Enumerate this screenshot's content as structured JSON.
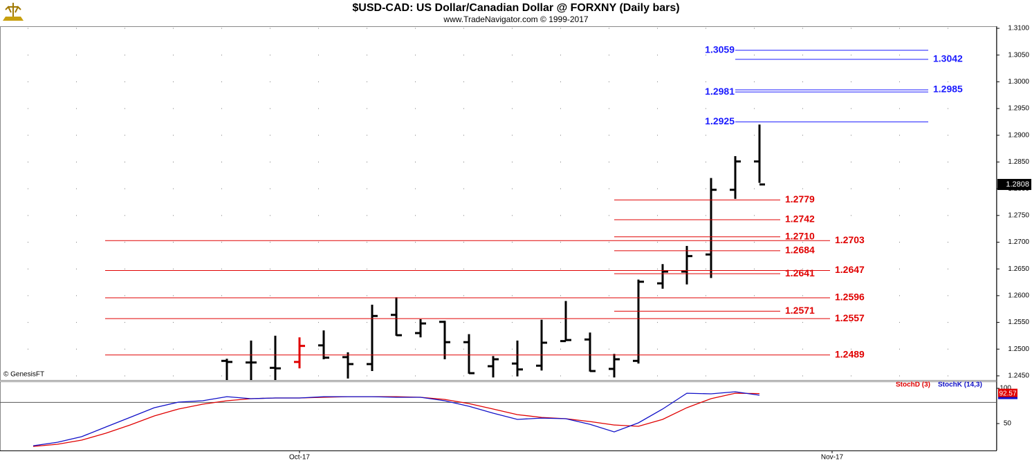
{
  "chart_data": {
    "type": "ohlc",
    "title": "$USD-CAD:  US Dollar/Canadian Dollar @ FORXNY  (Daily bars)",
    "subtitle": "www.TradeNavigator.com © 1999-2017",
    "watermark": "© GenesisFT",
    "xlim": [
      -1.371,
      39.771
    ],
    "xticks": [
      {
        "value": 11,
        "label": "Oct-17"
      },
      {
        "value": 33,
        "label": "Nov-17"
      }
    ],
    "ylim": [
      1.24422,
      1.31039
    ],
    "yticks": [
      {
        "value": 1.245,
        "label": "1.2450"
      },
      {
        "value": 1.25,
        "label": "1.2500"
      },
      {
        "value": 1.255,
        "label": "1.2550"
      },
      {
        "value": 1.26,
        "label": "1.2600"
      },
      {
        "value": 1.265,
        "label": "1.2650"
      },
      {
        "value": 1.27,
        "label": "1.2700"
      },
      {
        "value": 1.275,
        "label": "1.2750"
      },
      {
        "value": 1.28,
        "label": "1.2800"
      },
      {
        "value": 1.285,
        "label": "1.2850"
      },
      {
        "value": 1.29,
        "label": "1.2900"
      },
      {
        "value": 1.295,
        "label": "1.2950"
      },
      {
        "value": 1.3,
        "label": "1.3000"
      },
      {
        "value": 1.305,
        "label": "1.3050"
      },
      {
        "value": 1.31,
        "label": "1.3100"
      }
    ],
    "grid": true,
    "bars": {
      "x": [
        8,
        9,
        10,
        11,
        12,
        13,
        14,
        15,
        16,
        17,
        18,
        19,
        20,
        21,
        22,
        23,
        24,
        25,
        26,
        27,
        28,
        29,
        30
      ],
      "open": [
        1.2478,
        1.2475,
        1.2465,
        1.2476,
        1.2507,
        1.2485,
        1.2472,
        1.2564,
        1.253,
        1.2551,
        1.2513,
        1.2468,
        1.2473,
        1.2469,
        1.2515,
        1.2518,
        1.2463,
        1.2478,
        1.2623,
        1.2645,
        1.2677,
        1.2798,
        1.2851
      ],
      "high": [
        1.2482,
        1.2516,
        1.2525,
        1.2522,
        1.2535,
        1.2494,
        1.2583,
        1.2597,
        1.2556,
        1.2553,
        1.2528,
        1.2487,
        1.2516,
        1.2555,
        1.259,
        1.2531,
        1.2491,
        1.263,
        1.2659,
        1.2693,
        1.282,
        1.2861,
        1.292
      ],
      "low": [
        1.244,
        1.244,
        1.244,
        1.2464,
        1.2481,
        1.2445,
        1.2459,
        1.2525,
        1.2522,
        1.2481,
        1.2454,
        1.2447,
        1.2449,
        1.246,
        1.2515,
        1.2458,
        1.2447,
        1.2473,
        1.2613,
        1.2621,
        1.2633,
        1.2781,
        1.2811
      ],
      "close": [
        1.2476,
        1.2475,
        1.2464,
        1.2506,
        1.2484,
        1.2472,
        1.2562,
        1.2526,
        1.2548,
        1.2513,
        1.2455,
        1.2481,
        1.2462,
        1.2512,
        1.2517,
        1.2459,
        1.2481,
        1.2626,
        1.2645,
        1.2674,
        1.2798,
        1.2851,
        1.2808
      ],
      "colors": [
        "#000",
        "#000",
        "#000",
        "#e00000",
        "#000",
        "#000",
        "#000",
        "#000",
        "#000",
        "#000",
        "#000",
        "#000",
        "#000",
        "#000",
        "#000",
        "#000",
        "#000",
        "#000",
        "#000",
        "#000",
        "#000",
        "#000",
        "#000"
      ]
    },
    "level_groups": [
      {
        "color": "#1a1aff",
        "lines": [
          {
            "value": 1.3059,
            "side": "left"
          },
          {
            "value": 1.3042,
            "side": "right"
          },
          {
            "value": 1.2981,
            "side": "left"
          },
          {
            "value": 1.2985,
            "side": "right"
          },
          {
            "value": 1.2925,
            "side": "left"
          }
        ]
      },
      {
        "color": "#e00000",
        "lines": [
          {
            "value": 1.2779,
            "side": "right"
          },
          {
            "value": 1.2742,
            "side": "right"
          },
          {
            "value": 1.271,
            "label": "1.2710",
            "side": "right"
          },
          {
            "value": 1.2684,
            "side": "right"
          },
          {
            "value": 1.2641,
            "side": "right"
          },
          {
            "value": 1.2571,
            "side": "right"
          }
        ]
      },
      {
        "color": "#e00000",
        "lines": [
          {
            "value": 1.2703,
            "side": "right"
          },
          {
            "value": 1.2647,
            "side": "right"
          },
          {
            "value": 1.2596,
            "side": "right"
          },
          {
            "value": 1.2557,
            "side": "right"
          },
          {
            "value": 1.2489,
            "side": "right"
          }
        ]
      }
    ],
    "stoch": {
      "ylim": [
        11.8,
        106.9
      ],
      "yticks": [
        100,
        50
      ],
      "reference_line": 80,
      "x": [
        0,
        1,
        2,
        3,
        4,
        5,
        6,
        7,
        8,
        9,
        10,
        11,
        12,
        13,
        14,
        15,
        16,
        17,
        18,
        19,
        20,
        21,
        22,
        23,
        24,
        25,
        26,
        27,
        28,
        29,
        30
      ],
      "series": [
        {
          "name": "StochD (3)",
          "color": "#e00000",
          "values": [
            17.6,
            20.6,
            26.5,
            36.3,
            48.0,
            60.8,
            70.6,
            77.5,
            82.4,
            85.3,
            86.3,
            86.3,
            87.3,
            88.2,
            88.2,
            88.2,
            87.3,
            84.3,
            78.4,
            70.6,
            62.7,
            58.8,
            56.9,
            52.9,
            48.0,
            46.1,
            55.9,
            72.5,
            85.3,
            93.1,
            92.57
          ]
        },
        {
          "name": "StochK (14,3)",
          "color": "#1010c8",
          "values": [
            18.6,
            23.5,
            31.4,
            45.1,
            58.8,
            72.5,
            80.4,
            82.4,
            88.2,
            85.3,
            86.3,
            86.3,
            88.2,
            88.2,
            88.2,
            87.3,
            87.3,
            82.4,
            74.5,
            64.7,
            55.9,
            57.8,
            56.9,
            49.0,
            38.2,
            51.0,
            70.6,
            93.1,
            92.2,
            95.1,
            90.2
          ]
        }
      ]
    }
  }
}
